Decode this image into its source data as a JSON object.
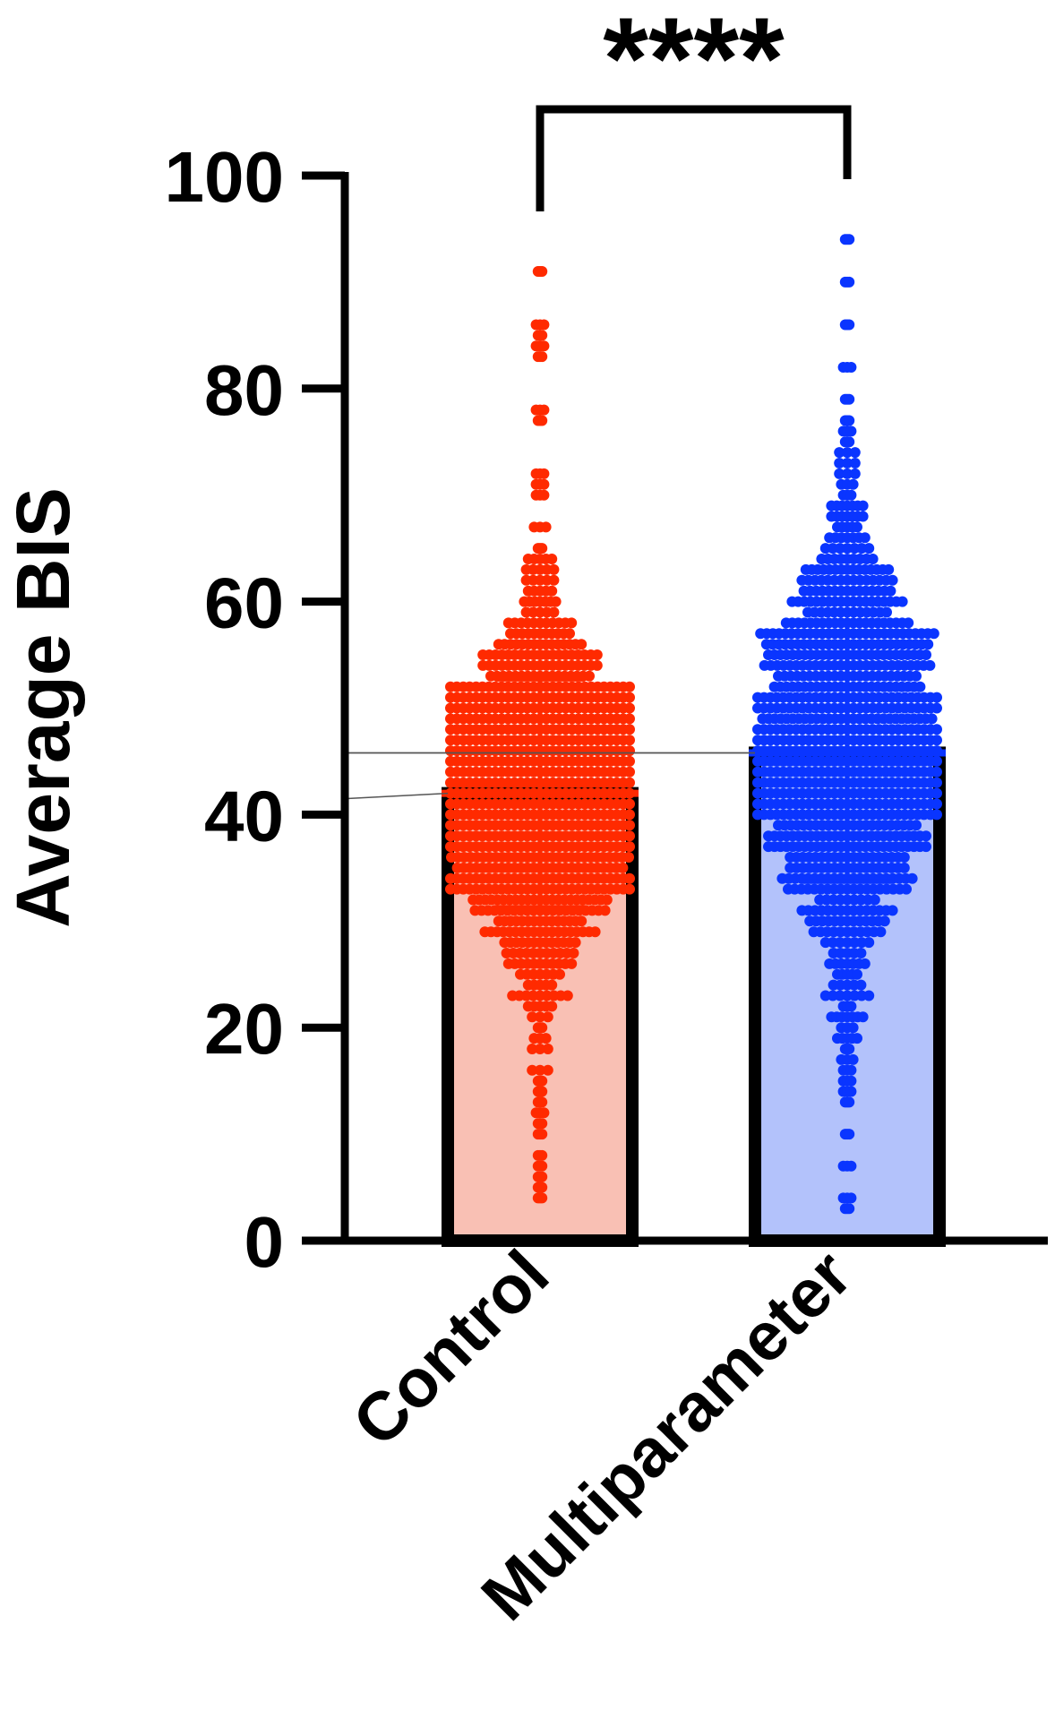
{
  "chart_data": {
    "type": "bar",
    "ylabel": "Average BIS",
    "ylim": [
      0,
      100
    ],
    "yticks": [
      0,
      20,
      40,
      60,
      80,
      100
    ],
    "ytick_labels": [
      "0",
      "20",
      "40",
      "60",
      "80",
      "100"
    ],
    "categories": [
      "Control",
      "Multiparameter"
    ],
    "series": [
      {
        "category": "Control",
        "mean": 42,
        "sd_upper": 52.7,
        "sd_lower": 31.3,
        "bar_color": "#f9c0b4",
        "point_color": "#ff2a00",
        "points_min": 4,
        "points_max": 91
      },
      {
        "category": "Multiparameter",
        "mean": 45.8,
        "sd_upper": 58,
        "sd_lower": 33.7,
        "bar_color": "#b3c2fb",
        "point_color": "#0a35ff",
        "points_min": 3,
        "points_max": 94
      }
    ],
    "significance": {
      "label": "****",
      "between": [
        "Control",
        "Multiparameter"
      ]
    }
  }
}
